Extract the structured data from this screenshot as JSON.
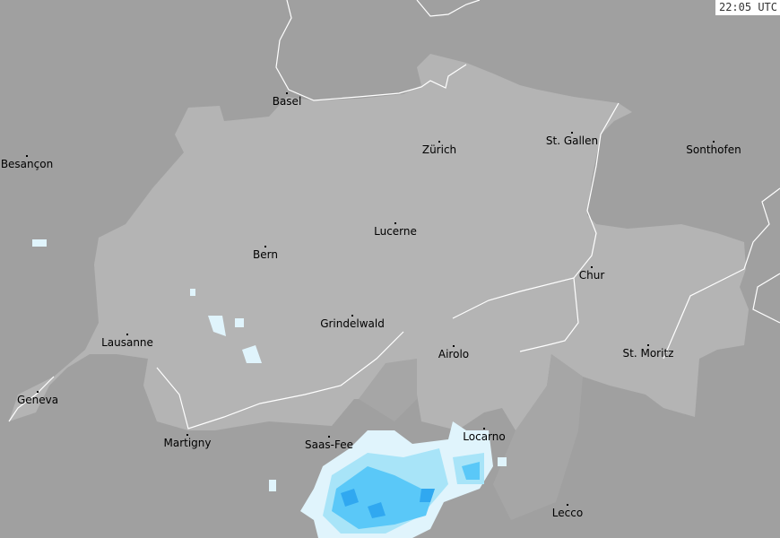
{
  "timestamp": "22:05 UTC",
  "colors": {
    "background": "#a0a0a0",
    "switzerland": "#b4b4b4",
    "border": "#ffffff",
    "precip_light": "#e0f4fc",
    "precip_moderate": "#a8e4f8",
    "precip_heavy": "#5ac8f8",
    "precip_strong": "#30a8f0"
  },
  "cities": [
    {
      "name": "Basel",
      "dot": [
        320,
        104
      ]
    },
    {
      "name": "Zürich",
      "dot": [
        490,
        158
      ]
    },
    {
      "name": "St. Gallen",
      "dot": [
        638,
        148
      ]
    },
    {
      "name": "Sonthofen",
      "dot": [
        796,
        158
      ]
    },
    {
      "name": "Besançon",
      "dot": [
        30,
        174
      ]
    },
    {
      "name": "Lucerne",
      "dot": [
        441,
        249
      ]
    },
    {
      "name": "Bern",
      "dot": [
        296,
        275
      ]
    },
    {
      "name": "Chur",
      "dot": [
        660,
        298
      ]
    },
    {
      "name": "Grindelwald",
      "dot": [
        393,
        352
      ]
    },
    {
      "name": "Lausanne",
      "dot": [
        142,
        373
      ]
    },
    {
      "name": "Airolo",
      "dot": [
        506,
        386
      ]
    },
    {
      "name": "St. Moritz",
      "dot": [
        723,
        385
      ]
    },
    {
      "name": "Geneva",
      "dot": [
        42,
        437
      ]
    },
    {
      "name": "Martigny",
      "dot": [
        209,
        485
      ]
    },
    {
      "name": "Saas-Fee",
      "dot": [
        367,
        487
      ]
    },
    {
      "name": "Locarno",
      "dot": [
        540,
        478
      ]
    },
    {
      "name": "Lecco",
      "dot": [
        633,
        563
      ]
    }
  ]
}
